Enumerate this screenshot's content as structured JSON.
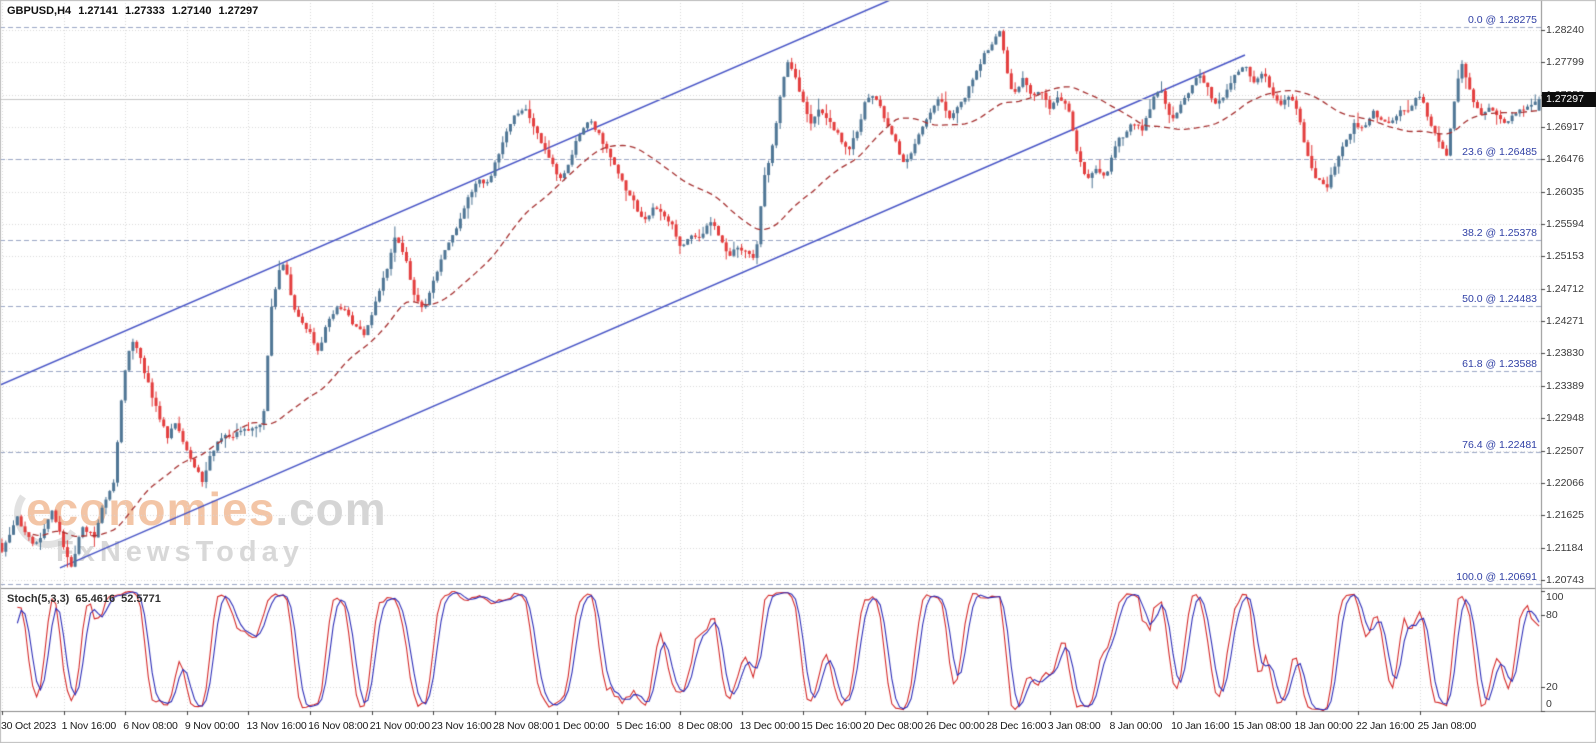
{
  "header": {
    "symbol_timeframe": "GBPUSD,H4",
    "open": "1.27141",
    "high": "1.27333",
    "low": "1.27140",
    "close": "1.27297"
  },
  "watermark": {
    "brand": "economies",
    "domain": ".com",
    "tagline": "FxNewsToday"
  },
  "indicator_panel": {
    "name": "Stoch(5,3,3)",
    "value_main": "65.4616",
    "value_signal": "52.5771",
    "scale_labels": [
      "100",
      "80",
      "20",
      "0"
    ]
  },
  "price_axis": {
    "current_price": "1.27297",
    "labels": [
      "1.28240",
      "1.27799",
      "1.27358",
      "1.26917",
      "1.26476",
      "1.26035",
      "1.25594",
      "1.25153",
      "1.24712",
      "1.24271",
      "1.23830",
      "1.23389",
      "1.22948",
      "1.22507",
      "1.22066",
      "1.21625",
      "1.21184",
      "1.20743"
    ]
  },
  "time_axis": {
    "labels": [
      "30 Oct 2023",
      "1 Nov 16:00",
      "6 Nov 08:00",
      "9 Nov 00:00",
      "13 Nov 16:00",
      "16 Nov 08:00",
      "21 Nov 00:00",
      "23 Nov 16:00",
      "28 Nov 08:00",
      "1 Dec 00:00",
      "5 Dec 16:00",
      "8 Dec 08:00",
      "13 Dec 00:00",
      "15 Dec 16:00",
      "20 Dec 08:00",
      "26 Dec 00:00",
      "28 Dec 16:00",
      "3 Jan 08:00",
      "8 Jan 00:00",
      "10 Jan 16:00",
      "15 Jan 08:00",
      "18 Jan 00:00",
      "22 Jan 16:00",
      "25 Jan 08:00"
    ]
  },
  "fibonacci": {
    "levels": [
      {
        "level": "0.0",
        "price": 1.28275,
        "display": "0.0 @ 1.28275"
      },
      {
        "level": "23.6",
        "price": 1.26485,
        "display": "23.6 @ 1.26485"
      },
      {
        "level": "38.2",
        "price": 1.25378,
        "display": "38.2 @ 1.25378"
      },
      {
        "level": "50.0",
        "price": 1.24483,
        "display": "50.0 @ 1.24483"
      },
      {
        "level": "61.8",
        "price": 1.23588,
        "display": "61.8 @ 1.23588"
      },
      {
        "level": "76.4",
        "price": 1.22481,
        "display": "76.4 @ 1.22481"
      },
      {
        "level": "100.0",
        "price": 1.20691,
        "display": "100.0 @ 1.20691"
      }
    ]
  },
  "channel": {
    "lines": [
      {
        "x1": 0.0,
        "price1": 1.234,
        "x2": 0.5776,
        "price2": 1.28649
      },
      {
        "x1": 0.0389,
        "price1": 1.20906,
        "x2": 0.8079,
        "price2": 1.27899
      }
    ]
  },
  "colors": {
    "background": "#ffffff",
    "bull_candle": "#4f7695",
    "bear_candle": "#e33e3e",
    "ma_line": "#a63232",
    "channel_line": "#4653c5",
    "fib_line": "#9aa6c4",
    "fib_text": "#3141a6",
    "stoch_main": "#d42a2a",
    "stoch_signal": "#2e2eb8",
    "grid": "#d8d8d8",
    "bid_line": "#c4c4c4",
    "price_tag_bg": "#0d0d0d",
    "watermark_orange": "#ec9c62",
    "watermark_gray": "#b2b2b2"
  },
  "chart_data": {
    "type": "candlestick",
    "title": "GBPUSD,H4",
    "candle_count": 400,
    "x_tick_every_candles": 16,
    "ylim": [
      1.20633,
      1.28649
    ],
    "ohlc_last": {
      "open": 1.27141,
      "high": 1.27333,
      "low": 1.2714,
      "close": 1.27297
    },
    "moving_average": {
      "type": "sma",
      "period": 36,
      "style": "dashed"
    },
    "stochastic": {
      "k_period": 5,
      "d_period": 3,
      "slowing": 3,
      "last_main": 65.4616,
      "last_signal": 52.5771,
      "levels": [
        20,
        80
      ],
      "range": [
        0,
        100
      ]
    },
    "grid": true,
    "price_path": [
      [
        0.0,
        1.2112
      ],
      [
        0.01,
        1.2155
      ],
      [
        0.022,
        1.2125
      ],
      [
        0.032,
        1.2166
      ],
      [
        0.04,
        1.2118
      ],
      [
        0.045,
        1.2094
      ],
      [
        0.052,
        1.215
      ],
      [
        0.06,
        1.2132
      ],
      [
        0.068,
        1.2186
      ],
      [
        0.073,
        1.221
      ],
      [
        0.078,
        1.233
      ],
      [
        0.082,
        1.239
      ],
      [
        0.086,
        1.2402
      ],
      [
        0.09,
        1.2372
      ],
      [
        0.096,
        1.2332
      ],
      [
        0.102,
        1.23
      ],
      [
        0.108,
        1.2272
      ],
      [
        0.113,
        1.2292
      ],
      [
        0.118,
        1.2257
      ],
      [
        0.124,
        1.2232
      ],
      [
        0.13,
        1.221
      ],
      [
        0.136,
        1.2252
      ],
      [
        0.142,
        1.227
      ],
      [
        0.15,
        1.2262
      ],
      [
        0.156,
        1.2276
      ],
      [
        0.163,
        1.2282
      ],
      [
        0.17,
        1.2292
      ],
      [
        0.175,
        1.244
      ],
      [
        0.18,
        1.249
      ],
      [
        0.184,
        1.2504
      ],
      [
        0.188,
        1.2462
      ],
      [
        0.194,
        1.2432
      ],
      [
        0.2,
        1.2412
      ],
      [
        0.206,
        1.2382
      ],
      [
        0.212,
        1.2422
      ],
      [
        0.218,
        1.2452
      ],
      [
        0.224,
        1.2442
      ],
      [
        0.23,
        1.242
      ],
      [
        0.236,
        1.2402
      ],
      [
        0.243,
        1.2452
      ],
      [
        0.25,
        1.2502
      ],
      [
        0.256,
        1.2542
      ],
      [
        0.262,
        1.2512
      ],
      [
        0.268,
        1.2462
      ],
      [
        0.274,
        1.2442
      ],
      [
        0.28,
        1.2482
      ],
      [
        0.286,
        1.2512
      ],
      [
        0.292,
        1.2532
      ],
      [
        0.298,
        1.2562
      ],
      [
        0.304,
        1.2602
      ],
      [
        0.31,
        1.2622
      ],
      [
        0.316,
        1.2612
      ],
      [
        0.322,
        1.2642
      ],
      [
        0.328,
        1.2682
      ],
      [
        0.334,
        1.2716
      ],
      [
        0.34,
        1.2722
      ],
      [
        0.346,
        1.2692
      ],
      [
        0.352,
        1.2662
      ],
      [
        0.358,
        1.264
      ],
      [
        0.364,
        1.2622
      ],
      [
        0.37,
        1.2652
      ],
      [
        0.376,
        1.268
      ],
      [
        0.382,
        1.2696
      ],
      [
        0.388,
        1.2688
      ],
      [
        0.394,
        1.2662
      ],
      [
        0.4,
        1.2632
      ],
      [
        0.406,
        1.2602
      ],
      [
        0.412,
        1.2582
      ],
      [
        0.418,
        1.2564
      ],
      [
        0.424,
        1.259
      ],
      [
        0.43,
        1.2572
      ],
      [
        0.436,
        1.2552
      ],
      [
        0.442,
        1.2524
      ],
      [
        0.448,
        1.2552
      ],
      [
        0.454,
        1.2542
      ],
      [
        0.46,
        1.2562
      ],
      [
        0.466,
        1.2542
      ],
      [
        0.472,
        1.2514
      ],
      [
        0.478,
        1.2532
      ],
      [
        0.484,
        1.2522
      ],
      [
        0.49,
        1.2508
      ],
      [
        0.496,
        1.2622
      ],
      [
        0.5,
        1.2652
      ],
      [
        0.504,
        1.2702
      ],
      [
        0.508,
        1.2762
      ],
      [
        0.512,
        1.2788
      ],
      [
        0.516,
        1.276
      ],
      [
        0.52,
        1.2732
      ],
      [
        0.526,
        1.2692
      ],
      [
        0.532,
        1.2722
      ],
      [
        0.538,
        1.2702
      ],
      [
        0.544,
        1.2682
      ],
      [
        0.55,
        1.2652
      ],
      [
        0.556,
        1.2682
      ],
      [
        0.562,
        1.273
      ],
      [
        0.568,
        1.274
      ],
      [
        0.574,
        1.2702
      ],
      [
        0.58,
        1.2672
      ],
      [
        0.586,
        1.2642
      ],
      [
        0.592,
        1.2662
      ],
      [
        0.598,
        1.2692
      ],
      [
        0.604,
        1.2712
      ],
      [
        0.61,
        1.273
      ],
      [
        0.616,
        1.2702
      ],
      [
        0.622,
        1.2722
      ],
      [
        0.628,
        1.2742
      ],
      [
        0.634,
        1.2762
      ],
      [
        0.64,
        1.2792
      ],
      [
        0.646,
        1.2812
      ],
      [
        0.65,
        1.2826
      ],
      [
        0.654,
        1.2772
      ],
      [
        0.658,
        1.2732
      ],
      [
        0.664,
        1.2752
      ],
      [
        0.67,
        1.2732
      ],
      [
        0.676,
        1.2742
      ],
      [
        0.682,
        1.2722
      ],
      [
        0.688,
        1.2732
      ],
      [
        0.694,
        1.2712
      ],
      [
        0.7,
        1.2652
      ],
      [
        0.706,
        1.2622
      ],
      [
        0.712,
        1.2642
      ],
      [
        0.718,
        1.2622
      ],
      [
        0.724,
        1.2662
      ],
      [
        0.73,
        1.2682
      ],
      [
        0.736,
        1.2702
      ],
      [
        0.742,
        1.2692
      ],
      [
        0.748,
        1.2722
      ],
      [
        0.754,
        1.2742
      ],
      [
        0.76,
        1.2702
      ],
      [
        0.766,
        1.2722
      ],
      [
        0.772,
        1.2742
      ],
      [
        0.778,
        1.2762
      ],
      [
        0.784,
        1.2742
      ],
      [
        0.79,
        1.2722
      ],
      [
        0.796,
        1.2742
      ],
      [
        0.802,
        1.2762
      ],
      [
        0.808,
        1.2772
      ],
      [
        0.814,
        1.2752
      ],
      [
        0.82,
        1.2772
      ],
      [
        0.826,
        1.2742
      ],
      [
        0.832,
        1.2722
      ],
      [
        0.838,
        1.2732
      ],
      [
        0.844,
        1.2702
      ],
      [
        0.85,
        1.2652
      ],
      [
        0.856,
        1.2622
      ],
      [
        0.862,
        1.2602
      ],
      [
        0.868,
        1.2642
      ],
      [
        0.874,
        1.2672
      ],
      [
        0.88,
        1.2702
      ],
      [
        0.886,
        1.2692
      ],
      [
        0.892,
        1.2712
      ],
      [
        0.898,
        1.2692
      ],
      [
        0.904,
        1.2702
      ],
      [
        0.91,
        1.2722
      ],
      [
        0.916,
        1.2712
      ],
      [
        0.922,
        1.2732
      ],
      [
        0.928,
        1.2702
      ],
      [
        0.934,
        1.2682
      ],
      [
        0.94,
        1.2658
      ],
      [
        0.946,
        1.2742
      ],
      [
        0.95,
        1.2772
      ],
      [
        0.956,
        1.2732
      ],
      [
        0.962,
        1.2712
      ],
      [
        0.968,
        1.2722
      ],
      [
        0.974,
        1.2702
      ],
      [
        0.98,
        1.2692
      ],
      [
        0.986,
        1.2712
      ],
      [
        0.992,
        1.2722
      ],
      [
        1.0,
        1.27297
      ]
    ]
  }
}
